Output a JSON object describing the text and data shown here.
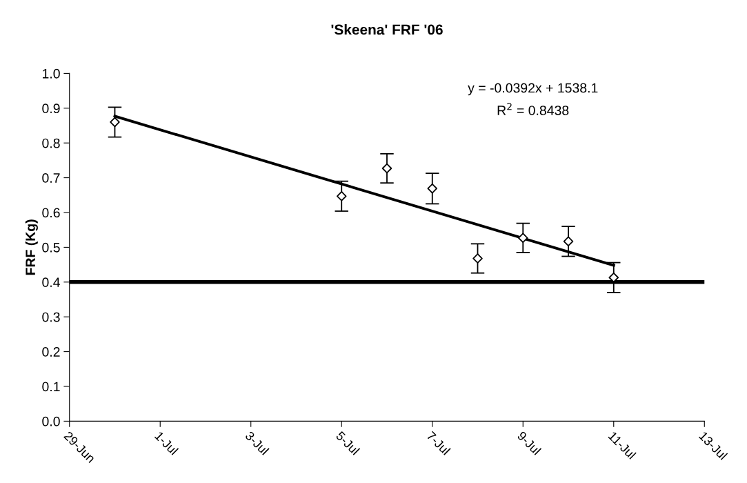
{
  "chart_data": {
    "type": "scatter",
    "title": "'Skeena' FRF '06",
    "ylabel": "FRF (Kg)",
    "x": [
      "2006-06-30",
      "2006-07-05",
      "2006-07-06",
      "2006-07-07",
      "2006-07-08",
      "2006-07-09",
      "2006-07-10",
      "2006-07-11"
    ],
    "series": [
      {
        "color": "#000000",
        "marker": "diamond",
        "values": [
          0.86,
          0.647,
          0.727,
          0.669,
          0.468,
          0.527,
          0.517,
          0.413
        ],
        "errors": [
          0.043,
          0.043,
          0.042,
          0.044,
          0.042,
          0.042,
          0.043,
          0.043
        ]
      },
      {
        "type": "line",
        "color": "#000000",
        "marker": "none",
        "line_style": "solid",
        "x": [
          "2006-06-30",
          "2006-07-11"
        ],
        "values": [
          0.877,
          0.448
        ]
      }
    ],
    "ref_lines": [
      {
        "axis": "y",
        "value": 0.4,
        "color": "#000000",
        "line_style": "solid"
      }
    ],
    "annotations": [
      "y = -0.0392x + 1538.1",
      "R$^{2}$ = 0.8438"
    ],
    "xlim": [
      "2006-06-29",
      "2006-07-13"
    ],
    "xticks": [
      {
        "value": "2006-06-29",
        "label": "29-Jun"
      },
      {
        "value": "2006-07-01",
        "label": "1-Jul"
      },
      {
        "value": "2006-07-03",
        "label": "3-Jul"
      },
      {
        "value": "2006-07-05",
        "label": "5-Jul"
      },
      {
        "value": "2006-07-07",
        "label": "7-Jul"
      },
      {
        "value": "2006-07-09",
        "label": "9-Jul"
      },
      {
        "value": "2006-07-11",
        "label": "11-Jul"
      },
      {
        "value": "2006-07-13",
        "label": "13-Jul"
      }
    ],
    "ylim": [
      0.0,
      1.0
    ],
    "yticks": [
      {
        "value": 0.0,
        "label": "0.0"
      },
      {
        "value": 0.1,
        "label": "0.1"
      },
      {
        "value": 0.2,
        "label": "0.2"
      },
      {
        "value": 0.3,
        "label": "0.3"
      },
      {
        "value": 0.4,
        "label": "0.4"
      },
      {
        "value": 0.5,
        "label": "0.5"
      },
      {
        "value": 0.6,
        "label": "0.6"
      },
      {
        "value": 0.7,
        "label": "0.7"
      },
      {
        "value": 0.8,
        "label": "0.8"
      },
      {
        "value": 0.9,
        "label": "0.9"
      },
      {
        "value": 1.0,
        "label": "1.0"
      }
    ],
    "grid": false,
    "legend": false
  }
}
